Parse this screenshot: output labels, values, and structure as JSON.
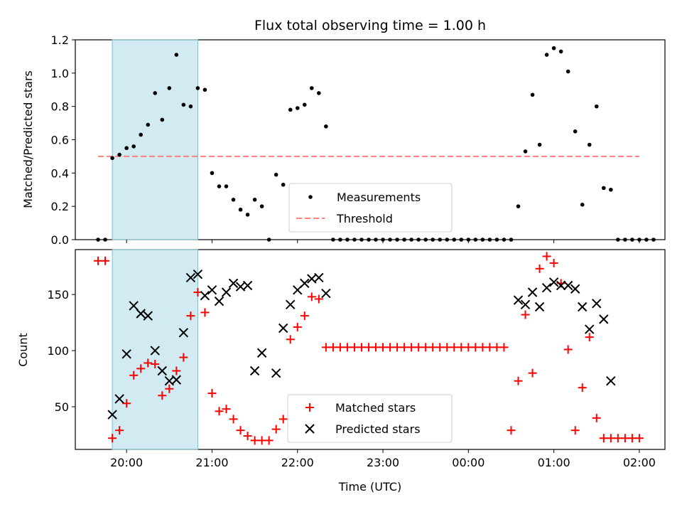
{
  "title": "Flux total observing time = 1.00 h",
  "colors": {
    "measurement": "#000000",
    "threshold": "#ff7f7f",
    "matched": "#ff0000",
    "predicted": "#000000",
    "shaded": "#add8e6"
  },
  "shaded_interval": [
    "19:50",
    "20:50"
  ],
  "chart_data": [
    {
      "type": "scatter",
      "ylabel": "Matched/Predicted stars",
      "ylim": [
        0,
        1.2
      ],
      "yticks": [
        "0.0",
        "0.2",
        "0.4",
        "0.6",
        "0.8",
        "1.0",
        "1.2"
      ],
      "xticks_shown": false,
      "legend": {
        "placement": "lower-center",
        "entries": [
          "Measurements",
          "Threshold"
        ]
      },
      "threshold": {
        "name": "Threshold",
        "value": 0.5,
        "x_start": "19:40",
        "x_end": "02:00"
      },
      "series": [
        {
          "name": "Measurements",
          "points": [
            [
              "19:40",
              0
            ],
            [
              "19:45",
              0
            ],
            [
              "19:50",
              0.49
            ],
            [
              "19:55",
              0.51
            ],
            [
              "20:00",
              0.55
            ],
            [
              "20:05",
              0.56
            ],
            [
              "20:10",
              0.63
            ],
            [
              "20:15",
              0.69
            ],
            [
              "20:20",
              0.88
            ],
            [
              "20:25",
              0.72
            ],
            [
              "20:30",
              0.91
            ],
            [
              "20:35",
              1.11
            ],
            [
              "20:40",
              0.81
            ],
            [
              "20:45",
              0.8
            ],
            [
              "20:50",
              0.91
            ],
            [
              "20:55",
              0.9
            ],
            [
              "21:00",
              0.4
            ],
            [
              "21:05",
              0.32
            ],
            [
              "21:10",
              0.32
            ],
            [
              "21:15",
              0.24
            ],
            [
              "21:20",
              0.18
            ],
            [
              "21:25",
              0.15
            ],
            [
              "21:30",
              0.24
            ],
            [
              "21:35",
              0.2
            ],
            [
              "21:40",
              0
            ],
            [
              "21:45",
              0.39
            ],
            [
              "21:50",
              0.33
            ],
            [
              "21:55",
              0.78
            ],
            [
              "22:00",
              0.79
            ],
            [
              "22:05",
              0.81
            ],
            [
              "22:10",
              0.91
            ],
            [
              "22:15",
              0.88
            ],
            [
              "22:20",
              0.68
            ],
            [
              "22:25",
              0
            ],
            [
              "22:30",
              0
            ],
            [
              "22:35",
              0
            ],
            [
              "22:40",
              0
            ],
            [
              "22:45",
              0
            ],
            [
              "22:50",
              0
            ],
            [
              "22:55",
              0
            ],
            [
              "23:00",
              0
            ],
            [
              "23:05",
              0
            ],
            [
              "23:10",
              0
            ],
            [
              "23:15",
              0
            ],
            [
              "23:20",
              0
            ],
            [
              "23:25",
              0
            ],
            [
              "23:30",
              0
            ],
            [
              "23:35",
              0
            ],
            [
              "23:40",
              0
            ],
            [
              "23:45",
              0
            ],
            [
              "23:50",
              0
            ],
            [
              "23:55",
              0
            ],
            [
              "00:00",
              0
            ],
            [
              "00:05",
              0
            ],
            [
              "00:10",
              0
            ],
            [
              "00:15",
              0
            ],
            [
              "00:20",
              0
            ],
            [
              "00:25",
              0
            ],
            [
              "00:30",
              0
            ],
            [
              "00:35",
              0.2
            ],
            [
              "00:40",
              0.53
            ],
            [
              "00:45",
              0.87
            ],
            [
              "00:50",
              0.57
            ],
            [
              "00:55",
              1.11
            ],
            [
              "01:00",
              1.15
            ],
            [
              "01:05",
              1.13
            ],
            [
              "01:10",
              1.01
            ],
            [
              "01:15",
              0.65
            ],
            [
              "01:20",
              0.21
            ],
            [
              "01:25",
              0.57
            ],
            [
              "01:30",
              0.8
            ],
            [
              "01:35",
              0.31
            ],
            [
              "01:40",
              0.3
            ],
            [
              "01:45",
              0
            ],
            [
              "01:50",
              0
            ],
            [
              "01:55",
              0
            ],
            [
              "02:00",
              0
            ],
            [
              "02:05",
              0
            ],
            [
              "02:10",
              0
            ]
          ]
        }
      ]
    },
    {
      "type": "scatter",
      "ylabel": "Count",
      "xlabel": "Time (UTC)",
      "ylim": [
        12,
        190
      ],
      "yticks": [
        50,
        100,
        150
      ],
      "xticks": [
        "20:00",
        "21:00",
        "22:00",
        "23:00",
        "00:00",
        "01:00",
        "02:00"
      ],
      "legend": {
        "placement": "lower-center",
        "entries": [
          "Matched stars",
          "Predicted stars"
        ]
      },
      "series": [
        {
          "name": "Matched stars",
          "marker": "+",
          "points": [
            [
              "19:40",
              180
            ],
            [
              "19:45",
              180
            ],
            [
              "19:50",
              22
            ],
            [
              "19:55",
              29
            ],
            [
              "20:00",
              53
            ],
            [
              "20:05",
              78
            ],
            [
              "20:10",
              84
            ],
            [
              "20:15",
              89
            ],
            [
              "20:20",
              88
            ],
            [
              "20:25",
              60
            ],
            [
              "20:30",
              66
            ],
            [
              "20:35",
              82
            ],
            [
              "20:40",
              94
            ],
            [
              "20:45",
              131
            ],
            [
              "20:50",
              152
            ],
            [
              "20:55",
              134
            ],
            [
              "21:00",
              62
            ],
            [
              "21:05",
              46
            ],
            [
              "21:10",
              48
            ],
            [
              "21:15",
              39
            ],
            [
              "21:20",
              29
            ],
            [
              "21:25",
              24
            ],
            [
              "21:30",
              20
            ],
            [
              "21:35",
              20
            ],
            [
              "21:40",
              20
            ],
            [
              "21:45",
              30
            ],
            [
              "21:50",
              39
            ],
            [
              "21:55",
              110
            ],
            [
              "22:00",
              121
            ],
            [
              "22:05",
              131
            ],
            [
              "22:10",
              148
            ],
            [
              "22:15",
              146
            ],
            [
              "22:20",
              103
            ],
            [
              "22:25",
              103
            ],
            [
              "22:30",
              103
            ],
            [
              "22:35",
              103
            ],
            [
              "22:40",
              103
            ],
            [
              "22:45",
              103
            ],
            [
              "22:50",
              103
            ],
            [
              "22:55",
              103
            ],
            [
              "23:00",
              103
            ],
            [
              "23:05",
              103
            ],
            [
              "23:10",
              103
            ],
            [
              "23:15",
              103
            ],
            [
              "23:20",
              103
            ],
            [
              "23:25",
              103
            ],
            [
              "23:30",
              103
            ],
            [
              "23:35",
              103
            ],
            [
              "23:40",
              103
            ],
            [
              "23:45",
              103
            ],
            [
              "23:50",
              103
            ],
            [
              "23:55",
              103
            ],
            [
              "00:00",
              103
            ],
            [
              "00:05",
              103
            ],
            [
              "00:10",
              103
            ],
            [
              "00:15",
              103
            ],
            [
              "00:20",
              103
            ],
            [
              "00:25",
              103
            ],
            [
              "00:30",
              29
            ],
            [
              "00:35",
              73
            ],
            [
              "00:40",
              132
            ],
            [
              "00:45",
              80
            ],
            [
              "00:50",
              173
            ],
            [
              "00:55",
              184
            ],
            [
              "01:00",
              178
            ],
            [
              "01:05",
              160
            ],
            [
              "01:10",
              101
            ],
            [
              "01:15",
              29
            ],
            [
              "01:20",
              67
            ],
            [
              "01:25",
              112
            ],
            [
              "01:30",
              40
            ],
            [
              "01:35",
              22
            ],
            [
              "01:40",
              22
            ],
            [
              "01:45",
              22
            ],
            [
              "01:50",
              22
            ],
            [
              "01:55",
              22
            ],
            [
              "02:00",
              22
            ]
          ]
        },
        {
          "name": "Predicted stars",
          "marker": "x",
          "points": [
            [
              "19:50",
              43
            ],
            [
              "19:55",
              57
            ],
            [
              "20:00",
              97
            ],
            [
              "20:05",
              140
            ],
            [
              "20:10",
              133
            ],
            [
              "20:15",
              131
            ],
            [
              "20:20",
              100
            ],
            [
              "20:25",
              82
            ],
            [
              "20:30",
              73
            ],
            [
              "20:35",
              74
            ],
            [
              "20:40",
              116
            ],
            [
              "20:45",
              165
            ],
            [
              "20:50",
              168
            ],
            [
              "20:55",
              149
            ],
            [
              "21:00",
              154
            ],
            [
              "21:05",
              144
            ],
            [
              "21:10",
              152
            ],
            [
              "21:15",
              160
            ],
            [
              "21:20",
              157
            ],
            [
              "21:25",
              158
            ],
            [
              "21:30",
              82
            ],
            [
              "21:35",
              98
            ],
            [
              "21:45",
              80
            ],
            [
              "21:50",
              120
            ],
            [
              "21:55",
              141
            ],
            [
              "22:00",
              154
            ],
            [
              "22:05",
              160
            ],
            [
              "22:10",
              164
            ],
            [
              "22:15",
              165
            ],
            [
              "22:20",
              151
            ],
            [
              "00:35",
              145
            ],
            [
              "00:40",
              141
            ],
            [
              "00:45",
              152
            ],
            [
              "00:50",
              139
            ],
            [
              "00:55",
              156
            ],
            [
              "01:00",
              161
            ],
            [
              "01:05",
              158
            ],
            [
              "01:10",
              158
            ],
            [
              "01:15",
              155
            ],
            [
              "01:20",
              139
            ],
            [
              "01:25",
              119
            ],
            [
              "01:30",
              142
            ],
            [
              "01:35",
              128
            ],
            [
              "01:40",
              73
            ]
          ]
        }
      ]
    }
  ]
}
